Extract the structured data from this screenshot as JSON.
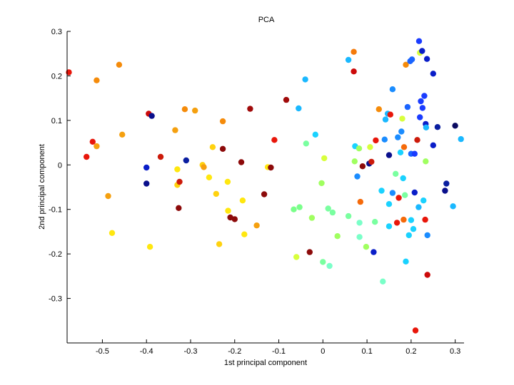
{
  "chart_data": {
    "type": "scatter",
    "title": "PCA",
    "xlabel": "1st principal component",
    "ylabel": "2nd principal component",
    "xlim": [
      -0.58,
      0.32
    ],
    "ylim": [
      -0.4,
      0.3
    ],
    "xticks": [
      -0.5,
      -0.4,
      -0.3,
      -0.2,
      -0.1,
      0,
      0.1,
      0.2,
      0.3
    ],
    "xtick_labels": [
      "-0.5",
      "-0.4",
      "-0.3",
      "-0.2",
      "-0.1",
      "0",
      "0.1",
      "0.2",
      "0.3"
    ],
    "yticks": [
      -0.3,
      -0.2,
      -0.1,
      0,
      0.1,
      0.2,
      0.3
    ],
    "ytick_labels": [
      "-0.3",
      "-0.2",
      "-0.1",
      "0",
      "0.1",
      "0.2",
      "0.3"
    ],
    "grid": false,
    "colormap": "jet",
    "points": [
      {
        "x": -0.576,
        "y": 0.208,
        "color": "#e8160a"
      },
      {
        "x": -0.536,
        "y": 0.018,
        "color": "#e8160a"
      },
      {
        "x": -0.522,
        "y": 0.052,
        "color": "#e8160a"
      },
      {
        "x": -0.513,
        "y": 0.19,
        "color": "#f58b0a"
      },
      {
        "x": -0.513,
        "y": 0.042,
        "color": "#f5a00f"
      },
      {
        "x": -0.487,
        "y": -0.07,
        "color": "#f5a00f"
      },
      {
        "x": -0.478,
        "y": -0.153,
        "color": "#ffe70f"
      },
      {
        "x": -0.462,
        "y": 0.225,
        "color": "#f58b0a"
      },
      {
        "x": -0.455,
        "y": 0.068,
        "color": "#f5a00f"
      },
      {
        "x": -0.4,
        "y": -0.006,
        "color": "#0a1ec8"
      },
      {
        "x": -0.4,
        "y": -0.042,
        "color": "#0a0f8c"
      },
      {
        "x": -0.395,
        "y": 0.115,
        "color": "#cc0a0a"
      },
      {
        "x": -0.392,
        "y": -0.184,
        "color": "#ffe70f"
      },
      {
        "x": -0.388,
        "y": 0.11,
        "color": "#0a0f8c"
      },
      {
        "x": -0.368,
        "y": 0.018,
        "color": "#cc1a0a"
      },
      {
        "x": -0.335,
        "y": 0.078,
        "color": "#f5a00f"
      },
      {
        "x": -0.33,
        "y": -0.045,
        "color": "#ffd20f"
      },
      {
        "x": -0.33,
        "y": -0.01,
        "color": "#ffe70f"
      },
      {
        "x": -0.327,
        "y": -0.097,
        "color": "#8c0a0a"
      },
      {
        "x": -0.325,
        "y": -0.038,
        "color": "#cc1a0a"
      },
      {
        "x": -0.313,
        "y": 0.125,
        "color": "#f58b0a"
      },
      {
        "x": -0.31,
        "y": 0.01,
        "color": "#0a1ea0"
      },
      {
        "x": -0.29,
        "y": 0.122,
        "color": "#f5a00f"
      },
      {
        "x": -0.273,
        "y": 0.0,
        "color": "#ffd20f"
      },
      {
        "x": -0.27,
        "y": -0.005,
        "color": "#f5a00f"
      },
      {
        "x": -0.258,
        "y": -0.028,
        "color": "#ffe70f"
      },
      {
        "x": -0.25,
        "y": 0.04,
        "color": "#ffd20f"
      },
      {
        "x": -0.242,
        "y": -0.065,
        "color": "#ffd20f"
      },
      {
        "x": -0.235,
        "y": -0.178,
        "color": "#ffd20f"
      },
      {
        "x": -0.227,
        "y": 0.098,
        "color": "#f58b0a"
      },
      {
        "x": -0.227,
        "y": 0.036,
        "color": "#8c0a0a"
      },
      {
        "x": -0.216,
        "y": -0.038,
        "color": "#ffe70f"
      },
      {
        "x": -0.215,
        "y": -0.103,
        "color": "#ffe70f"
      },
      {
        "x": -0.21,
        "y": -0.118,
        "color": "#8c0a0a"
      },
      {
        "x": -0.2,
        "y": -0.122,
        "color": "#8c0a0a"
      },
      {
        "x": -0.185,
        "y": 0.006,
        "color": "#8c0a0a"
      },
      {
        "x": -0.182,
        "y": -0.08,
        "color": "#ffe70f"
      },
      {
        "x": -0.178,
        "y": -0.156,
        "color": "#ffe70f"
      },
      {
        "x": -0.165,
        "y": 0.126,
        "color": "#a00a0a"
      },
      {
        "x": -0.15,
        "y": -0.136,
        "color": "#f5a00f"
      },
      {
        "x": -0.133,
        "y": -0.066,
        "color": "#8c0a0a"
      },
      {
        "x": -0.125,
        "y": -0.005,
        "color": "#ffe70f"
      },
      {
        "x": -0.118,
        "y": -0.006,
        "color": "#8c0a0a"
      },
      {
        "x": -0.11,
        "y": 0.056,
        "color": "#e8160a"
      },
      {
        "x": -0.083,
        "y": 0.146,
        "color": "#a00a0a"
      },
      {
        "x": -0.066,
        "y": -0.1,
        "color": "#7aff8a"
      },
      {
        "x": -0.06,
        "y": -0.207,
        "color": "#d8ff3c"
      },
      {
        "x": -0.055,
        "y": 0.127,
        "color": "#1ab8ff"
      },
      {
        "x": -0.053,
        "y": -0.095,
        "color": "#7aff8a"
      },
      {
        "x": -0.04,
        "y": 0.192,
        "color": "#1ab8ff"
      },
      {
        "x": -0.038,
        "y": 0.048,
        "color": "#7affa0"
      },
      {
        "x": -0.03,
        "y": -0.196,
        "color": "#8c0a0a"
      },
      {
        "x": -0.025,
        "y": -0.119,
        "color": "#a0ff60"
      },
      {
        "x": -0.017,
        "y": 0.068,
        "color": "#1ad2ff"
      },
      {
        "x": -0.003,
        "y": -0.041,
        "color": "#a0ff60"
      },
      {
        "x": 0.0,
        "y": -0.218,
        "color": "#7affa0"
      },
      {
        "x": 0.003,
        "y": 0.015,
        "color": "#d8ff3c"
      },
      {
        "x": 0.012,
        "y": -0.098,
        "color": "#7affa0"
      },
      {
        "x": 0.015,
        "y": -0.227,
        "color": "#7affc8"
      },
      {
        "x": 0.022,
        "y": -0.107,
        "color": "#7affa0"
      },
      {
        "x": 0.033,
        "y": -0.16,
        "color": "#a0ff60"
      },
      {
        "x": 0.058,
        "y": 0.236,
        "color": "#1ab8ff"
      },
      {
        "x": 0.058,
        "y": -0.115,
        "color": "#7affa0"
      },
      {
        "x": 0.07,
        "y": 0.21,
        "color": "#cc0a0a"
      },
      {
        "x": 0.07,
        "y": 0.254,
        "color": "#f57a0a"
      },
      {
        "x": 0.072,
        "y": 0.008,
        "color": "#a0ff60"
      },
      {
        "x": 0.073,
        "y": 0.042,
        "color": "#1ad2ff"
      },
      {
        "x": 0.078,
        "y": -0.026,
        "color": "#1a8cff"
      },
      {
        "x": 0.082,
        "y": 0.037,
        "color": "#a0ff60"
      },
      {
        "x": 0.083,
        "y": -0.13,
        "color": "#7affc8"
      },
      {
        "x": 0.083,
        "y": -0.162,
        "color": "#7affc8"
      },
      {
        "x": 0.085,
        "y": -0.083,
        "color": "#f56a0a"
      },
      {
        "x": 0.09,
        "y": -0.003,
        "color": "#8c0a0a"
      },
      {
        "x": 0.098,
        "y": -0.184,
        "color": "#a0ff60"
      },
      {
        "x": 0.105,
        "y": 0.003,
        "color": "#0a0f8c"
      },
      {
        "x": 0.107,
        "y": 0.04,
        "color": "#d8ff3c"
      },
      {
        "x": 0.11,
        "y": 0.007,
        "color": "#cc1a0a"
      },
      {
        "x": 0.115,
        "y": -0.196,
        "color": "#0a1ec8"
      },
      {
        "x": 0.118,
        "y": -0.128,
        "color": "#7affa0"
      },
      {
        "x": 0.12,
        "y": 0.055,
        "color": "#e8160a"
      },
      {
        "x": 0.127,
        "y": 0.125,
        "color": "#f58b0a"
      },
      {
        "x": 0.133,
        "y": -0.058,
        "color": "#1ad2ff"
      },
      {
        "x": 0.136,
        "y": -0.262,
        "color": "#7affc8"
      },
      {
        "x": 0.14,
        "y": 0.057,
        "color": "#1a8cff"
      },
      {
        "x": 0.142,
        "y": 0.102,
        "color": "#1ab8ff"
      },
      {
        "x": 0.147,
        "y": 0.115,
        "color": "#1ab8ff"
      },
      {
        "x": 0.15,
        "y": 0.022,
        "color": "#0a0f8c"
      },
      {
        "x": 0.15,
        "y": -0.088,
        "color": "#1ad2ff"
      },
      {
        "x": 0.15,
        "y": -0.138,
        "color": "#1ad2ff"
      },
      {
        "x": 0.153,
        "y": 0.113,
        "color": "#e8160a"
      },
      {
        "x": 0.158,
        "y": 0.17,
        "color": "#1a8cff"
      },
      {
        "x": 0.158,
        "y": -0.063,
        "color": "#1a8cff"
      },
      {
        "x": 0.165,
        "y": -0.02,
        "color": "#7affa0"
      },
      {
        "x": 0.168,
        "y": -0.13,
        "color": "#e8160a"
      },
      {
        "x": 0.17,
        "y": 0.062,
        "color": "#1a8cff"
      },
      {
        "x": 0.172,
        "y": -0.074,
        "color": "#e8160a"
      },
      {
        "x": 0.176,
        "y": 0.028,
        "color": "#1ad2ff"
      },
      {
        "x": 0.178,
        "y": 0.075,
        "color": "#1a8cff"
      },
      {
        "x": 0.18,
        "y": 0.104,
        "color": "#d8ff3c"
      },
      {
        "x": 0.182,
        "y": -0.03,
        "color": "#1ad2ff"
      },
      {
        "x": 0.183,
        "y": -0.123,
        "color": "#f56a0a"
      },
      {
        "x": 0.184,
        "y": 0.04,
        "color": "#f56a0a"
      },
      {
        "x": 0.186,
        "y": -0.068,
        "color": "#7affa0"
      },
      {
        "x": 0.188,
        "y": 0.225,
        "color": "#f58b0a"
      },
      {
        "x": 0.188,
        "y": -0.217,
        "color": "#1ad2ff"
      },
      {
        "x": 0.192,
        "y": 0.13,
        "color": "#1a64ff"
      },
      {
        "x": 0.195,
        "y": -0.158,
        "color": "#1ad2ff"
      },
      {
        "x": 0.198,
        "y": 0.233,
        "color": "#1a64ff"
      },
      {
        "x": 0.2,
        "y": -0.124,
        "color": "#1ad2ff"
      },
      {
        "x": 0.2,
        "y": 0.025,
        "color": "#1a64ff"
      },
      {
        "x": 0.202,
        "y": 0.237,
        "color": "#1a64ff"
      },
      {
        "x": 0.205,
        "y": -0.144,
        "color": "#1ad2ff"
      },
      {
        "x": 0.208,
        "y": -0.062,
        "color": "#0a1ec8"
      },
      {
        "x": 0.208,
        "y": 0.025,
        "color": "#1a3cff"
      },
      {
        "x": 0.21,
        "y": -0.372,
        "color": "#e8160a"
      },
      {
        "x": 0.214,
        "y": 0.056,
        "color": "#cc1a0a"
      },
      {
        "x": 0.217,
        "y": -0.095,
        "color": "#1ab8ff"
      },
      {
        "x": 0.218,
        "y": 0.278,
        "color": "#1a3cff"
      },
      {
        "x": 0.22,
        "y": 0.252,
        "color": "#d8ff3c"
      },
      {
        "x": 0.22,
        "y": 0.107,
        "color": "#1a3cff"
      },
      {
        "x": 0.222,
        "y": 0.143,
        "color": "#1a3cff"
      },
      {
        "x": 0.225,
        "y": 0.256,
        "color": "#0a1ec8"
      },
      {
        "x": 0.226,
        "y": 0.128,
        "color": "#1a3cff"
      },
      {
        "x": 0.228,
        "y": -0.08,
        "color": "#1ad2ff"
      },
      {
        "x": 0.23,
        "y": 0.155,
        "color": "#1a3cff"
      },
      {
        "x": 0.232,
        "y": -0.123,
        "color": "#e8160a"
      },
      {
        "x": 0.233,
        "y": 0.008,
        "color": "#a0ff60"
      },
      {
        "x": 0.233,
        "y": 0.092,
        "color": "#0a1ec8"
      },
      {
        "x": 0.234,
        "y": 0.084,
        "color": "#1ab8ff"
      },
      {
        "x": 0.236,
        "y": 0.238,
        "color": "#0a1ec8"
      },
      {
        "x": 0.237,
        "y": -0.158,
        "color": "#1a8cff"
      },
      {
        "x": 0.237,
        "y": -0.247,
        "color": "#cc0a0a"
      },
      {
        "x": 0.25,
        "y": 0.205,
        "color": "#0a1ec8"
      },
      {
        "x": 0.25,
        "y": 0.044,
        "color": "#0a1ec8"
      },
      {
        "x": 0.26,
        "y": 0.085,
        "color": "#0a1ea0"
      },
      {
        "x": 0.277,
        "y": -0.058,
        "color": "#0a0f8c"
      },
      {
        "x": 0.28,
        "y": -0.042,
        "color": "#0a1ea0"
      },
      {
        "x": 0.295,
        "y": -0.093,
        "color": "#1ab8ff"
      },
      {
        "x": 0.3,
        "y": 0.088,
        "color": "#0a0a60"
      },
      {
        "x": 0.313,
        "y": 0.058,
        "color": "#1ab8ff"
      }
    ]
  }
}
